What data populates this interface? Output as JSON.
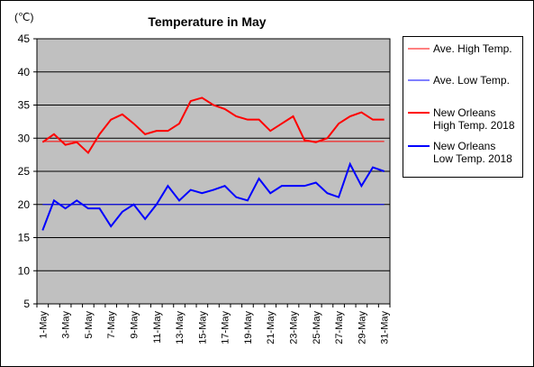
{
  "chart_data": {
    "type": "line",
    "title": "Temperature in May",
    "unit_label": "(℃)",
    "ylim": [
      5,
      45
    ],
    "yticks": [
      5,
      10,
      15,
      20,
      25,
      30,
      35,
      40,
      45
    ],
    "grid": true,
    "legend_position": "right",
    "x": [
      "1-May",
      "2-May",
      "3-May",
      "4-May",
      "5-May",
      "6-May",
      "7-May",
      "8-May",
      "9-May",
      "10-May",
      "11-May",
      "12-May",
      "13-May",
      "14-May",
      "15-May",
      "16-May",
      "17-May",
      "18-May",
      "19-May",
      "20-May",
      "21-May",
      "22-May",
      "23-May",
      "24-May",
      "25-May",
      "26-May",
      "27-May",
      "28-May",
      "29-May",
      "30-May",
      "31-May"
    ],
    "xtick_labels": [
      "1-May",
      "3-May",
      "5-May",
      "7-May",
      "9-May",
      "11-May",
      "13-May",
      "15-May",
      "17-May",
      "19-May",
      "21-May",
      "23-May",
      "25-May",
      "27-May",
      "29-May",
      "31-May"
    ],
    "series": [
      {
        "name": "Ave. High Temp.",
        "color": "#ff0000",
        "width": 1,
        "values": [
          29.5,
          29.5,
          29.5,
          29.5,
          29.5,
          29.5,
          29.5,
          29.5,
          29.5,
          29.5,
          29.5,
          29.5,
          29.5,
          29.5,
          29.5,
          29.5,
          29.5,
          29.5,
          29.5,
          29.5,
          29.5,
          29.5,
          29.5,
          29.5,
          29.5,
          29.5,
          29.5,
          29.5,
          29.5,
          29.5,
          29.5
        ]
      },
      {
        "name": "Ave. Low Temp.",
        "color": "#0000ff",
        "width": 1,
        "values": [
          20.0,
          20.0,
          20.0,
          20.0,
          20.0,
          20.0,
          20.0,
          20.0,
          20.0,
          20.0,
          20.0,
          20.0,
          20.0,
          20.0,
          20.0,
          20.0,
          20.0,
          20.0,
          20.0,
          20.0,
          20.0,
          20.0,
          20.0,
          20.0,
          20.0,
          20.0,
          20.0,
          20.0,
          20.0,
          20.0,
          20.0
        ]
      },
      {
        "name": "New Orleans High Temp. 2018",
        "color": "#ff0000",
        "width": 2,
        "values": [
          29.4,
          30.6,
          29.0,
          29.4,
          27.8,
          30.6,
          32.8,
          33.6,
          32.2,
          30.6,
          31.1,
          31.1,
          32.2,
          35.6,
          36.1,
          35.0,
          34.4,
          33.3,
          32.8,
          32.8,
          31.1,
          32.2,
          33.3,
          29.7,
          29.4,
          30.0,
          32.2,
          33.3,
          33.9,
          32.8,
          32.8
        ]
      },
      {
        "name": "New Orleans Low Temp. 2018",
        "color": "#0000ff",
        "width": 2,
        "values": [
          16.1,
          20.6,
          19.4,
          20.6,
          19.4,
          19.4,
          16.7,
          18.9,
          20.0,
          17.8,
          20.0,
          22.8,
          20.6,
          22.2,
          21.7,
          22.2,
          22.8,
          21.1,
          20.6,
          23.9,
          21.7,
          22.8,
          22.8,
          22.8,
          23.3,
          21.7,
          21.1,
          26.1,
          22.8,
          25.6,
          25.0
        ]
      }
    ],
    "legend": [
      {
        "lines": [
          "Ave. High Temp."
        ],
        "color": "#ff0000",
        "width": 1
      },
      {
        "lines": [
          "Ave. Low Temp."
        ],
        "color": "#0000ff",
        "width": 1
      },
      {
        "lines": [
          "New Orleans",
          "High Temp. 2018"
        ],
        "color": "#ff0000",
        "width": 2
      },
      {
        "lines": [
          "New Orleans",
          "Low Temp. 2018"
        ],
        "color": "#0000ff",
        "width": 2
      }
    ],
    "plot_background": "#c0c0c0"
  }
}
